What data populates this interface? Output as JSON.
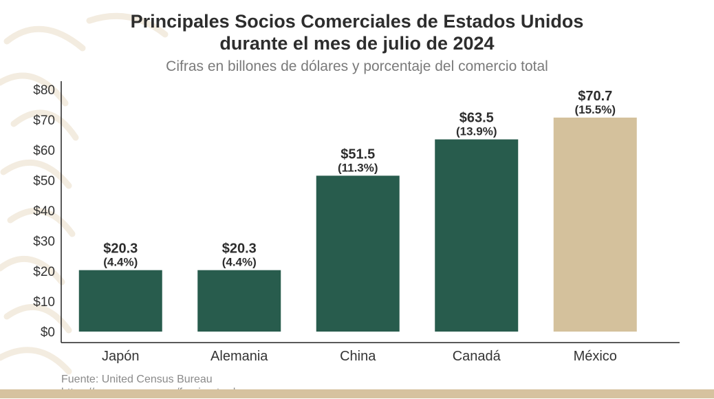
{
  "title_line1": "Principales Socios Comerciales de Estados Unidos",
  "title_line2": "durante el mes de julio de 2024",
  "subtitle": "Cifras en billones de dólares y porcentaje del comercio total",
  "footer": {
    "source": "Fuente: United Census Bureau",
    "url": "https://www.census.gov/foreign-trade"
  },
  "colors": {
    "bar_default": "#285c4d",
    "bar_highlight": "#d4c19c",
    "band": "#d6c29f"
  },
  "chart_data": {
    "type": "bar",
    "categories": [
      "Japón",
      "Alemania",
      "China",
      "Canadá",
      "México"
    ],
    "values": [
      20.3,
      20.3,
      51.5,
      63.5,
      70.7
    ],
    "value_labels": [
      "$20.3",
      "$20.3",
      "$51.5",
      "$63.5",
      "$70.7"
    ],
    "percent_labels": [
      "(4.4%)",
      "(4.4%)",
      "(11.3%)",
      "(13.9%)",
      "(15.5%)"
    ],
    "highlight_index": 4,
    "ylim": [
      0,
      80
    ],
    "yticks": [
      0,
      10,
      20,
      30,
      40,
      50,
      60,
      70,
      80
    ],
    "ytick_labels": [
      "$0",
      "$10",
      "$20",
      "$30",
      "$40",
      "$50",
      "$60",
      "$70",
      "$80"
    ],
    "xlabel": "",
    "ylabel": "",
    "grid": false
  }
}
